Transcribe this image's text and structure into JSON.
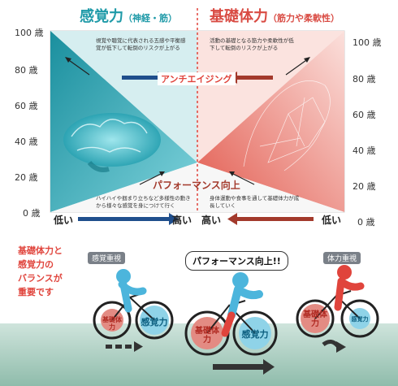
{
  "header": {
    "left_title": "感覚力",
    "left_sub": "（神経・筋）",
    "right_title": "基礎体力",
    "right_sub": "（筋力や柔軟性）"
  },
  "age_axis": [
    "100 歳",
    "80 歳",
    "60 歳",
    "40 歳",
    "20 歳",
    "0 歳"
  ],
  "notes": {
    "top_left": "視覚や聴覚に代表される五感や平衡感覚が低下して転倒のリスクが上がる",
    "top_right": "活動の基礎となる筋力や柔軟性が低下して転倒のリスクが上がる",
    "bottom_left": "ハイハイや掴まり立ちなど多様性の動きから様々な感覚を身につけて行く",
    "bottom_right": "身体運動や食事を通して基礎体力が成長していく"
  },
  "arrows": {
    "anti_aging": "アンチエイジング",
    "performance": "パフォーマンス向上"
  },
  "scale_labels": {
    "left_low": "低い",
    "left_high": "高い",
    "right_high": "高い",
    "right_low": "低い"
  },
  "side_note": [
    "基礎体力と",
    "感覚力の",
    "バランスが",
    "重要です"
  ],
  "cyclists": {
    "left_badge": "感覚重視",
    "center_bubble": "パフォーマンス向上!!",
    "right_badge": "体力重視",
    "sense": "感覚力",
    "basic": "基礎体力"
  },
  "colors": {
    "teal": "#1f9aa8",
    "red": "#d94b43",
    "navy": "#1f4e8c",
    "darkred": "#a33a2c"
  }
}
